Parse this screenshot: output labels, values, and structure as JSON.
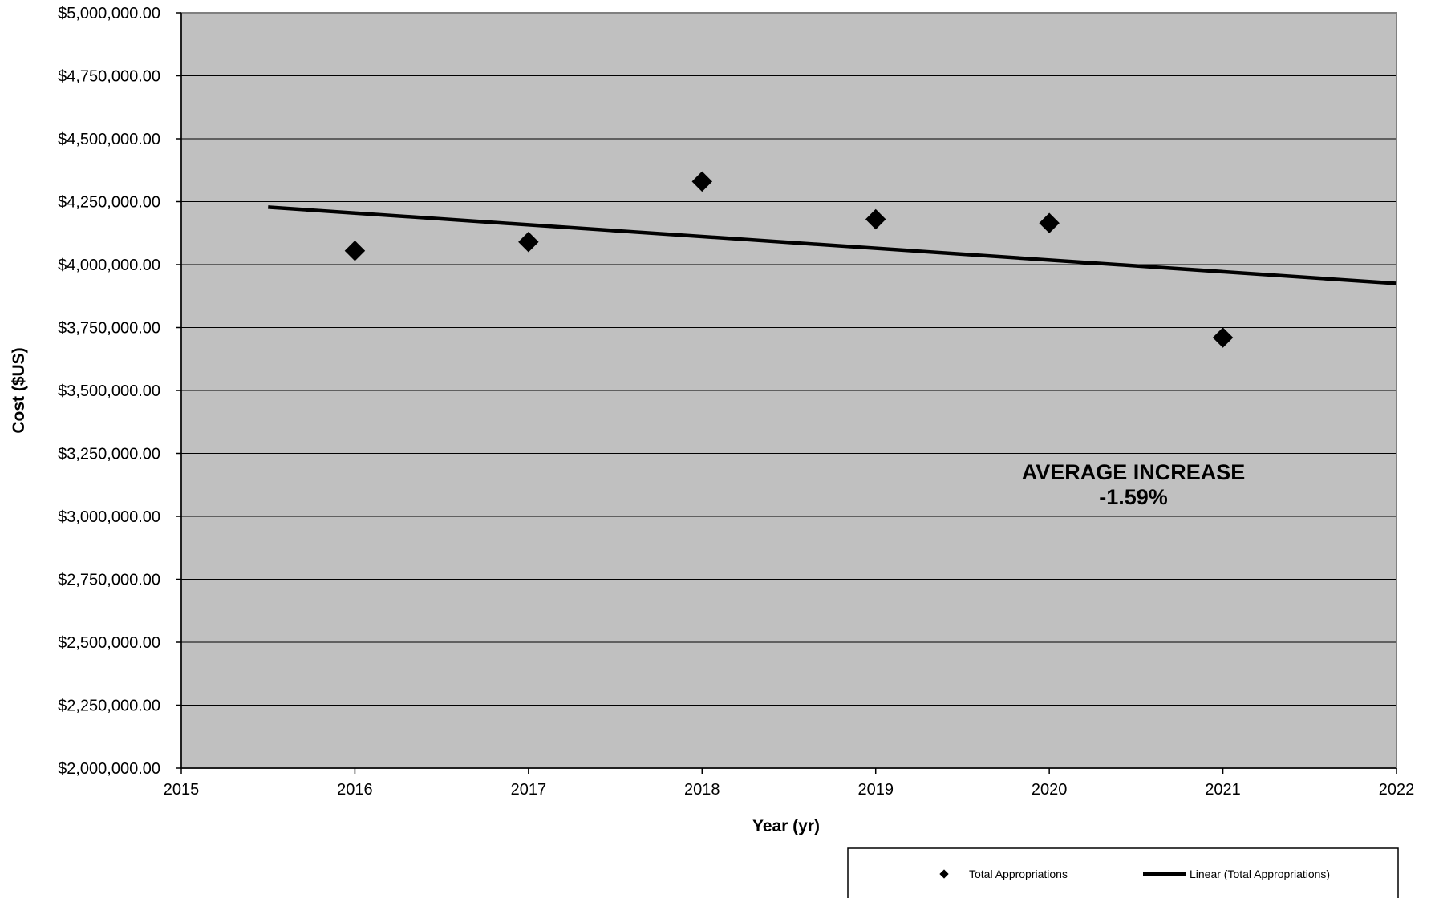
{
  "chart_data": {
    "type": "scatter",
    "xlabel": "Year (yr)",
    "ylabel": "Cost ($US)",
    "xlim": [
      2015,
      2022
    ],
    "ylim": [
      2000000,
      5000000
    ],
    "x_ticks": [
      "2015",
      "2016",
      "2017",
      "2018",
      "2019",
      "2020",
      "2021",
      "2022"
    ],
    "y_ticks": [
      "$2,000,000.00",
      "$2,250,000.00",
      "$2,500,000.00",
      "$2,750,000.00",
      "$3,000,000.00",
      "$3,250,000.00",
      "$3,500,000.00",
      "$3,750,000.00",
      "$4,000,000.00",
      "$4,250,000.00",
      "$4,500,000.00",
      "$4,750,000.00",
      "$5,000,000.00"
    ],
    "grid": true,
    "legend_position": "bottom-right",
    "series": [
      {
        "name": "Total Appropriations",
        "marker": "diamond",
        "color": "#000000",
        "x": [
          2016,
          2017,
          2018,
          2019,
          2020,
          2021
        ],
        "y": [
          4055000,
          4090000,
          4330000,
          4180000,
          4165000,
          3710000
        ]
      },
      {
        "name": "Linear (Total Appropriations)",
        "kind": "trendline",
        "color": "#000000",
        "x": [
          2015.5,
          2022
        ],
        "y": [
          4228000,
          3925000
        ]
      }
    ],
    "annotation": {
      "line1": "AVERAGE INCREASE",
      "line2": "-1.59%"
    },
    "plot_background": "#c0c0c0"
  }
}
